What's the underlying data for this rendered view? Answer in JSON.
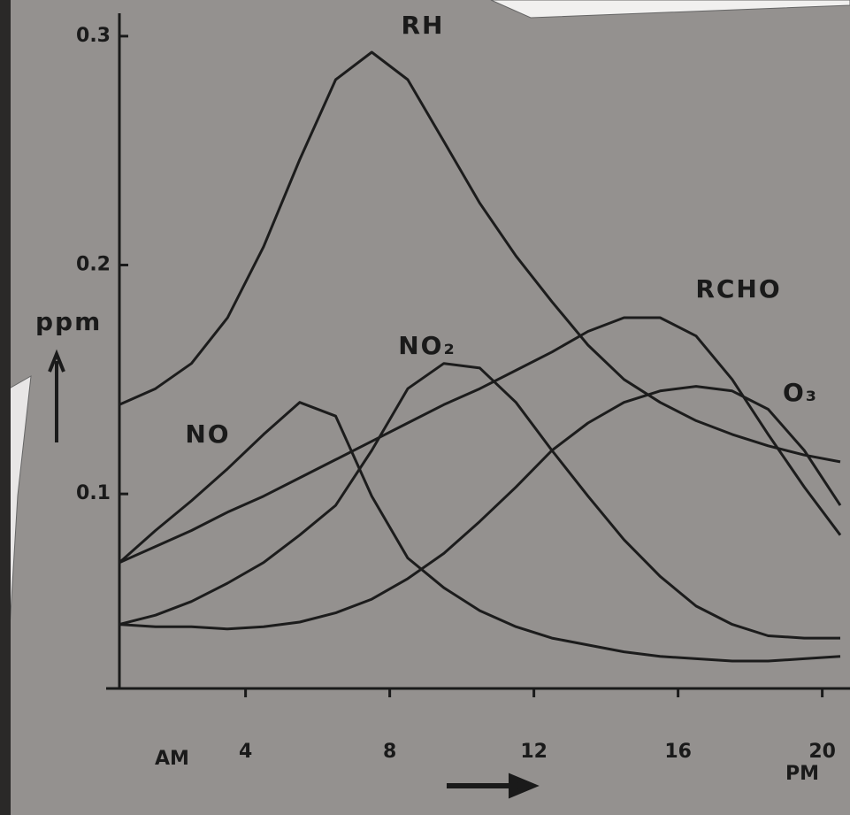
{
  "chart_data": {
    "type": "line",
    "ylabel": "ppm",
    "x_start_label": "AM",
    "x_end_label": "PM",
    "x": [
      0.5,
      1.5,
      2.5,
      3.5,
      4.5,
      5.5,
      6.5,
      7.5,
      8.5,
      9.5,
      10.5,
      11.5,
      12.5,
      13.5,
      14.5,
      15.5,
      16.5,
      17.5,
      18.5,
      19.5,
      20.5
    ],
    "series": [
      {
        "name": "RH",
        "color": "#1c1c1c",
        "values": [
          0.139,
          0.146,
          0.157,
          0.177,
          0.208,
          0.246,
          0.281,
          0.293,
          0.281,
          0.254,
          0.227,
          0.204,
          0.184,
          0.165,
          0.15,
          0.14,
          0.132,
          0.126,
          0.121,
          0.117,
          0.114
        ]
      },
      {
        "name": "NO",
        "color": "#1c1c1c",
        "values": [
          0.07,
          0.084,
          0.097,
          0.111,
          0.126,
          0.14,
          0.134,
          0.099,
          0.072,
          0.059,
          0.049,
          0.042,
          0.037,
          0.034,
          0.031,
          0.029,
          0.028,
          0.027,
          0.027,
          0.028,
          0.029
        ]
      },
      {
        "name": "NO₂",
        "color": "#1c1c1c",
        "values": [
          0.043,
          0.047,
          0.053,
          0.061,
          0.07,
          0.082,
          0.095,
          0.119,
          0.146,
          0.157,
          0.155,
          0.14,
          0.119,
          0.099,
          0.08,
          0.064,
          0.051,
          0.043,
          0.038,
          0.037,
          0.037
        ]
      },
      {
        "name": "RCHO",
        "color": "#1c1c1c",
        "values": [
          0.07,
          0.077,
          0.084,
          0.092,
          0.099,
          0.107,
          0.115,
          0.123,
          0.131,
          0.139,
          0.146,
          0.154,
          0.162,
          0.171,
          0.177,
          0.177,
          0.169,
          0.15,
          0.126,
          0.103,
          0.082
        ]
      },
      {
        "name": "O₃",
        "color": "#1c1c1c",
        "values": [
          0.043,
          0.042,
          0.042,
          0.041,
          0.042,
          0.044,
          0.048,
          0.054,
          0.063,
          0.074,
          0.088,
          0.103,
          0.119,
          0.131,
          0.14,
          0.145,
          0.147,
          0.145,
          0.137,
          0.119,
          0.095
        ]
      }
    ],
    "xlim": [
      0.5,
      20.5
    ],
    "xticks": [
      4,
      8,
      12,
      16,
      20
    ],
    "ylim": [
      0.015,
      0.31
    ],
    "yticks": [
      0.1,
      0.2,
      0.3
    ]
  }
}
